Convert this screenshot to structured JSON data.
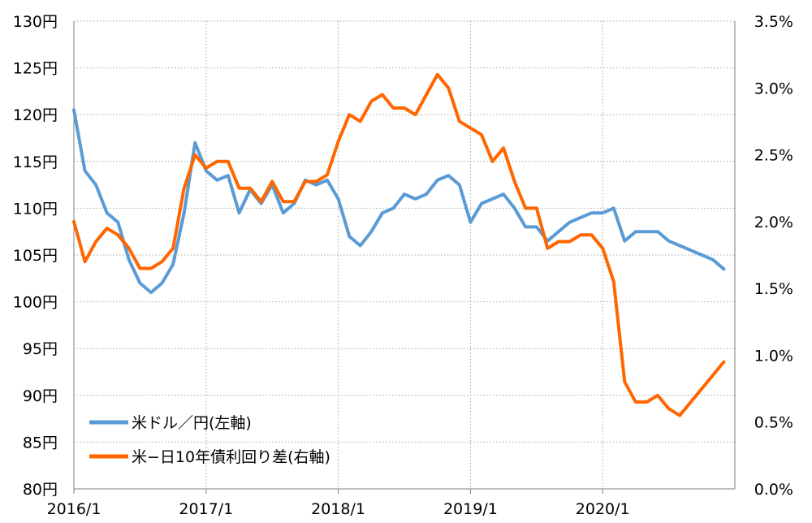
{
  "chart_data": {
    "type": "line",
    "title": "",
    "xlabel": "",
    "ylabel": "",
    "x_ticks": [
      "2016/1",
      "2017/1",
      "2018/1",
      "2019/1",
      "2020/1"
    ],
    "y_left": {
      "min": 80,
      "max": 130,
      "step": 5,
      "tick_labels": [
        "80円",
        "85円",
        "90円",
        "95円",
        "100円",
        "105円",
        "110円",
        "115円",
        "120円",
        "125円",
        "130円"
      ]
    },
    "y_right": {
      "min": 0.0,
      "max": 3.5,
      "step": 0.5,
      "tick_labels": [
        "0.0%",
        "0.5%",
        "1.0%",
        "1.5%",
        "2.0%",
        "2.5%",
        "3.0%",
        "3.5%"
      ]
    },
    "grid": true,
    "legend_position": "bottom-left",
    "series": [
      {
        "name": "米ドル／円(左軸)",
        "axis": "left",
        "color": "#5B9BD5",
        "points": [
          [
            "2016/01",
            120.5
          ],
          [
            "2016/02",
            114.0
          ],
          [
            "2016/03",
            112.5
          ],
          [
            "2016/04",
            109.5
          ],
          [
            "2016/05",
            108.5
          ],
          [
            "2016/06",
            104.5
          ],
          [
            "2016/07",
            102.0
          ],
          [
            "2016/08",
            101.0
          ],
          [
            "2016/09",
            102.0
          ],
          [
            "2016/10",
            104.0
          ],
          [
            "2016/11",
            109.5
          ],
          [
            "2016/12",
            117.0
          ],
          [
            "2017/01",
            114.0
          ],
          [
            "2017/02",
            113.0
          ],
          [
            "2017/03",
            113.5
          ],
          [
            "2017/04",
            109.5
          ],
          [
            "2017/05",
            112.0
          ],
          [
            "2017/06",
            110.5
          ],
          [
            "2017/07",
            112.5
          ],
          [
            "2017/08",
            109.5
          ],
          [
            "2017/09",
            110.5
          ],
          [
            "2017/10",
            113.0
          ],
          [
            "2017/11",
            112.5
          ],
          [
            "2017/12",
            113.0
          ],
          [
            "2018/01",
            111.0
          ],
          [
            "2018/02",
            107.0
          ],
          [
            "2018/03",
            106.0
          ],
          [
            "2018/04",
            107.5
          ],
          [
            "2018/05",
            109.5
          ],
          [
            "2018/06",
            110.0
          ],
          [
            "2018/07",
            111.5
          ],
          [
            "2018/08",
            111.0
          ],
          [
            "2018/09",
            111.5
          ],
          [
            "2018/10",
            113.0
          ],
          [
            "2018/11",
            113.5
          ],
          [
            "2018/12",
            112.5
          ],
          [
            "2019/01",
            108.5
          ],
          [
            "2019/02",
            110.5
          ],
          [
            "2019/03",
            111.0
          ],
          [
            "2019/04",
            111.5
          ],
          [
            "2019/05",
            110.0
          ],
          [
            "2019/06",
            108.0
          ],
          [
            "2019/07",
            108.0
          ],
          [
            "2019/08",
            106.5
          ],
          [
            "2019/09",
            107.5
          ],
          [
            "2019/10",
            108.5
          ],
          [
            "2019/11",
            109.0
          ],
          [
            "2019/12",
            109.5
          ],
          [
            "2020/01",
            109.5
          ],
          [
            "2020/02",
            110.0
          ],
          [
            "2020/03",
            106.5
          ],
          [
            "2020/04",
            107.5
          ],
          [
            "2020/05",
            107.5
          ],
          [
            "2020/06",
            107.5
          ],
          [
            "2020/07",
            106.5
          ],
          [
            "2020/08",
            106.0
          ],
          [
            "2020/09",
            105.5
          ],
          [
            "2020/10",
            105.0
          ],
          [
            "2020/11",
            104.5
          ],
          [
            "2020/12",
            103.5
          ]
        ]
      },
      {
        "name": "米−日10年債利回り差(右軸)",
        "axis": "right",
        "color": "#FF6600",
        "points": [
          [
            "2016/01",
            2.0
          ],
          [
            "2016/02",
            1.7
          ],
          [
            "2016/03",
            1.85
          ],
          [
            "2016/04",
            1.95
          ],
          [
            "2016/05",
            1.9
          ],
          [
            "2016/06",
            1.8
          ],
          [
            "2016/07",
            1.65
          ],
          [
            "2016/08",
            1.65
          ],
          [
            "2016/09",
            1.7
          ],
          [
            "2016/10",
            1.8
          ],
          [
            "2016/11",
            2.25
          ],
          [
            "2016/12",
            2.5
          ],
          [
            "2017/01",
            2.4
          ],
          [
            "2017/02",
            2.45
          ],
          [
            "2017/03",
            2.45
          ],
          [
            "2017/04",
            2.25
          ],
          [
            "2017/05",
            2.25
          ],
          [
            "2017/06",
            2.15
          ],
          [
            "2017/07",
            2.3
          ],
          [
            "2017/08",
            2.15
          ],
          [
            "2017/09",
            2.15
          ],
          [
            "2017/10",
            2.3
          ],
          [
            "2017/11",
            2.3
          ],
          [
            "2017/12",
            2.35
          ],
          [
            "2018/01",
            2.6
          ],
          [
            "2018/02",
            2.8
          ],
          [
            "2018/03",
            2.75
          ],
          [
            "2018/04",
            2.9
          ],
          [
            "2018/05",
            2.95
          ],
          [
            "2018/06",
            2.85
          ],
          [
            "2018/07",
            2.85
          ],
          [
            "2018/08",
            2.8
          ],
          [
            "2018/09",
            2.95
          ],
          [
            "2018/10",
            3.1
          ],
          [
            "2018/11",
            3.0
          ],
          [
            "2018/12",
            2.75
          ],
          [
            "2019/01",
            2.7
          ],
          [
            "2019/02",
            2.65
          ],
          [
            "2019/03",
            2.45
          ],
          [
            "2019/04",
            2.55
          ],
          [
            "2019/05",
            2.3
          ],
          [
            "2019/06",
            2.1
          ],
          [
            "2019/07",
            2.1
          ],
          [
            "2019/08",
            1.8
          ],
          [
            "2019/09",
            1.85
          ],
          [
            "2019/10",
            1.85
          ],
          [
            "2019/11",
            1.9
          ],
          [
            "2019/12",
            1.9
          ],
          [
            "2020/01",
            1.8
          ],
          [
            "2020/02",
            1.55
          ],
          [
            "2020/03",
            0.8
          ],
          [
            "2020/04",
            0.65
          ],
          [
            "2020/05",
            0.65
          ],
          [
            "2020/06",
            0.7
          ],
          [
            "2020/07",
            0.6
          ],
          [
            "2020/08",
            0.55
          ],
          [
            "2020/09",
            0.65
          ],
          [
            "2020/10",
            0.75
          ],
          [
            "2020/11",
            0.85
          ],
          [
            "2020/12",
            0.95
          ]
        ]
      }
    ]
  }
}
